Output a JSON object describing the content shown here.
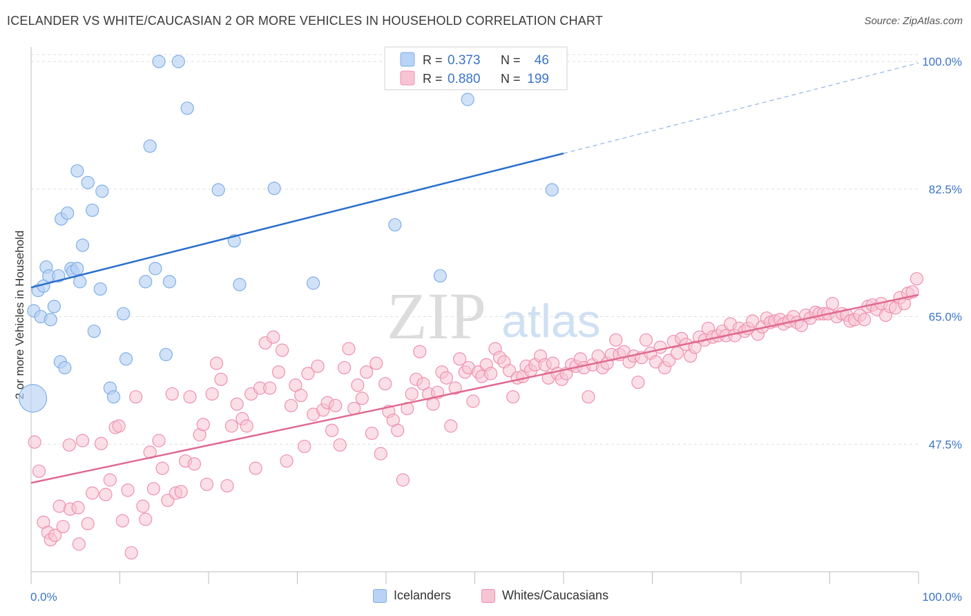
{
  "title": "ICELANDER VS WHITE/CAUCASIAN 2 OR MORE VEHICLES IN HOUSEHOLD CORRELATION CHART",
  "source": "Source: ZipAtlas.com",
  "watermark": {
    "zip": "ZIP",
    "atlas": "atlas"
  },
  "colors": {
    "blue_fill": "#b8d3f5",
    "blue_stroke": "#7faee6",
    "blue_line": "#2a6fcc",
    "pink_fill": "#f7c4d4",
    "pink_stroke": "#ee8fb0",
    "pink_line": "#e0698f",
    "tick_label": "#3b74c9"
  },
  "legend_box": {
    "rows": [
      {
        "r_label": "R =",
        "r_value": "0.373",
        "n_label": "N =",
        "n_value": "46"
      },
      {
        "r_label": "R =",
        "r_value": "0.880",
        "n_label": "N =",
        "n_value": "199"
      }
    ]
  },
  "legend_bottom": [
    {
      "label": "Icelanders"
    },
    {
      "label": "Whites/Caucasians"
    }
  ],
  "chart_data": {
    "type": "scatter",
    "title": "ICELANDER VS WHITE/CAUCASIAN 2 OR MORE VEHICLES IN HOUSEHOLD CORRELATION CHART",
    "xlabel": "",
    "ylabel": "2 or more Vehicles in Household",
    "xlim": [
      0,
      100
    ],
    "ylim": [
      30,
      102
    ],
    "x_tick_labels": [
      "0.0%",
      "100.0%"
    ],
    "y_ticks": [
      47.5,
      65.0,
      82.5,
      100.0
    ],
    "y_tick_labels": [
      "47.5%",
      "65.0%",
      "82.5%",
      "100.0%"
    ],
    "grid": true,
    "legend_position": "top-center",
    "series": [
      {
        "name": "Icelanders",
        "R": 0.373,
        "N": 46,
        "trend": {
          "x0": 0,
          "y0": 69.0,
          "x1": 60,
          "y1": 87.4,
          "dashed_to_x": 100,
          "dashed_to_y": 99.8
        },
        "points": [
          [
            0.2,
            53.8
          ],
          [
            0.3,
            65.8
          ],
          [
            0.8,
            68.6
          ],
          [
            1.1,
            65.0
          ],
          [
            1.4,
            69.2
          ],
          [
            1.7,
            71.8
          ],
          [
            2.0,
            70.6
          ],
          [
            2.2,
            64.6
          ],
          [
            2.6,
            66.4
          ],
          [
            3.1,
            70.6
          ],
          [
            3.3,
            58.8
          ],
          [
            3.4,
            78.4
          ],
          [
            3.8,
            58.0
          ],
          [
            4.1,
            79.2
          ],
          [
            4.5,
            71.6
          ],
          [
            4.7,
            71.2
          ],
          [
            5.2,
            71.6
          ],
          [
            5.2,
            85.0
          ],
          [
            5.5,
            69.8
          ],
          [
            5.8,
            74.8
          ],
          [
            6.4,
            83.4
          ],
          [
            6.9,
            79.6
          ],
          [
            7.1,
            63.0
          ],
          [
            7.8,
            68.8
          ],
          [
            8.0,
            82.2
          ],
          [
            8.9,
            55.2
          ],
          [
            9.3,
            54.0
          ],
          [
            10.4,
            65.4
          ],
          [
            10.7,
            59.2
          ],
          [
            12.9,
            69.8
          ],
          [
            13.4,
            88.4
          ],
          [
            14.0,
            71.6
          ],
          [
            14.4,
            100.0
          ],
          [
            15.2,
            59.8
          ],
          [
            15.6,
            69.8
          ],
          [
            16.6,
            100.0
          ],
          [
            17.6,
            93.6
          ],
          [
            21.1,
            82.4
          ],
          [
            22.9,
            75.4
          ],
          [
            23.5,
            69.4
          ],
          [
            27.4,
            82.6
          ],
          [
            31.8,
            69.6
          ],
          [
            41.0,
            77.6
          ],
          [
            46.1,
            70.6
          ],
          [
            49.2,
            94.8
          ],
          [
            58.7,
            82.4
          ]
        ]
      },
      {
        "name": "Whites/Caucasians",
        "R": 0.88,
        "N": 199,
        "trend": {
          "x0": 0,
          "y0": 42.2,
          "x1": 100,
          "y1": 68.0
        },
        "points": [
          [
            0.4,
            47.8
          ],
          [
            0.9,
            43.8
          ],
          [
            1.4,
            36.8
          ],
          [
            1.9,
            35.4
          ],
          [
            2.2,
            34.4
          ],
          [
            2.7,
            35.0
          ],
          [
            3.2,
            39.0
          ],
          [
            3.6,
            36.2
          ],
          [
            4.3,
            47.4
          ],
          [
            4.4,
            38.6
          ],
          [
            5.3,
            38.8
          ],
          [
            5.4,
            33.8
          ],
          [
            5.8,
            48.0
          ],
          [
            6.4,
            36.6
          ],
          [
            6.9,
            40.8
          ],
          [
            7.9,
            47.6
          ],
          [
            8.4,
            40.6
          ],
          [
            8.9,
            42.6
          ],
          [
            9.5,
            49.8
          ],
          [
            9.9,
            50.0
          ],
          [
            10.3,
            37.0
          ],
          [
            10.9,
            41.2
          ],
          [
            11.3,
            32.6
          ],
          [
            11.8,
            54.0
          ],
          [
            12.6,
            39.0
          ],
          [
            12.9,
            37.2
          ],
          [
            13.4,
            46.4
          ],
          [
            13.8,
            41.4
          ],
          [
            14.4,
            48.0
          ],
          [
            14.8,
            44.2
          ],
          [
            15.4,
            39.8
          ],
          [
            15.9,
            54.4
          ],
          [
            16.3,
            40.8
          ],
          [
            16.9,
            41.0
          ],
          [
            17.4,
            45.2
          ],
          [
            17.9,
            54.0
          ],
          [
            18.4,
            44.8
          ],
          [
            19.0,
            48.8
          ],
          [
            19.4,
            50.2
          ],
          [
            19.8,
            42.0
          ],
          [
            20.4,
            54.4
          ],
          [
            20.9,
            58.6
          ],
          [
            21.4,
            56.4
          ],
          [
            22.1,
            41.8
          ],
          [
            22.6,
            50.0
          ],
          [
            23.2,
            53.0
          ],
          [
            23.8,
            51.0
          ],
          [
            24.3,
            50.0
          ],
          [
            24.8,
            54.4
          ],
          [
            25.3,
            44.2
          ],
          [
            25.8,
            55.2
          ],
          [
            26.4,
            61.4
          ],
          [
            26.9,
            55.2
          ],
          [
            27.3,
            62.2
          ],
          [
            27.9,
            57.4
          ],
          [
            28.3,
            60.4
          ],
          [
            28.8,
            45.2
          ],
          [
            29.3,
            52.8
          ],
          [
            29.8,
            55.6
          ],
          [
            30.4,
            54.2
          ],
          [
            30.8,
            47.2
          ],
          [
            31.2,
            57.2
          ],
          [
            31.8,
            51.6
          ],
          [
            32.3,
            58.2
          ],
          [
            32.9,
            52.2
          ],
          [
            33.4,
            53.2
          ],
          [
            33.9,
            49.4
          ],
          [
            34.3,
            52.8
          ],
          [
            34.8,
            47.4
          ],
          [
            35.3,
            58.0
          ],
          [
            35.8,
            60.6
          ],
          [
            36.4,
            52.4
          ],
          [
            36.8,
            55.6
          ],
          [
            37.3,
            53.8
          ],
          [
            37.8,
            57.4
          ],
          [
            38.4,
            49.0
          ],
          [
            38.9,
            58.6
          ],
          [
            39.4,
            46.2
          ],
          [
            39.9,
            55.8
          ],
          [
            40.3,
            52.0
          ],
          [
            40.8,
            50.8
          ],
          [
            41.3,
            49.4
          ],
          [
            41.9,
            42.6
          ],
          [
            42.4,
            52.4
          ],
          [
            42.9,
            54.4
          ],
          [
            43.4,
            56.4
          ],
          [
            43.8,
            60.2
          ],
          [
            44.2,
            55.8
          ],
          [
            44.8,
            54.4
          ],
          [
            45.3,
            53.0
          ],
          [
            45.8,
            54.6
          ],
          [
            46.3,
            57.4
          ],
          [
            46.8,
            56.6
          ],
          [
            47.3,
            50.0
          ],
          [
            47.8,
            55.2
          ],
          [
            48.3,
            59.2
          ],
          [
            48.9,
            57.4
          ],
          [
            49.3,
            58.0
          ],
          [
            49.8,
            53.4
          ],
          [
            50.4,
            57.4
          ],
          [
            50.8,
            56.8
          ],
          [
            51.3,
            58.4
          ],
          [
            51.8,
            57.2
          ],
          [
            52.3,
            60.6
          ],
          [
            52.8,
            59.4
          ],
          [
            53.3,
            58.8
          ],
          [
            53.9,
            57.6
          ],
          [
            54.3,
            54.0
          ],
          [
            54.8,
            56.6
          ],
          [
            55.4,
            56.8
          ],
          [
            55.8,
            58.2
          ],
          [
            56.3,
            57.6
          ],
          [
            56.8,
            58.4
          ],
          [
            57.4,
            59.6
          ],
          [
            57.9,
            58.4
          ],
          [
            58.3,
            56.6
          ],
          [
            58.8,
            58.6
          ],
          [
            59.3,
            57.2
          ],
          [
            59.8,
            56.4
          ],
          [
            60.3,
            57.2
          ],
          [
            60.9,
            58.4
          ],
          [
            61.4,
            58.2
          ],
          [
            61.9,
            59.2
          ],
          [
            62.3,
            58.0
          ],
          [
            62.8,
            54.0
          ],
          [
            63.3,
            58.4
          ],
          [
            63.9,
            59.6
          ],
          [
            64.4,
            58.0
          ],
          [
            64.9,
            58.6
          ],
          [
            65.4,
            59.8
          ],
          [
            65.9,
            61.8
          ],
          [
            66.3,
            59.8
          ],
          [
            66.8,
            60.2
          ],
          [
            67.4,
            58.8
          ],
          [
            67.9,
            59.6
          ],
          [
            68.4,
            56.0
          ],
          [
            68.8,
            59.4
          ],
          [
            69.3,
            61.8
          ],
          [
            69.8,
            60.0
          ],
          [
            70.4,
            58.8
          ],
          [
            70.9,
            60.8
          ],
          [
            71.4,
            58.0
          ],
          [
            71.9,
            59.0
          ],
          [
            72.4,
            61.6
          ],
          [
            72.8,
            60.0
          ],
          [
            73.3,
            62.0
          ],
          [
            73.8,
            61.2
          ],
          [
            74.3,
            59.6
          ],
          [
            74.8,
            60.8
          ],
          [
            75.3,
            62.2
          ],
          [
            75.9,
            61.8
          ],
          [
            76.3,
            63.4
          ],
          [
            76.8,
            62.2
          ],
          [
            77.4,
            62.4
          ],
          [
            77.9,
            63.0
          ],
          [
            78.3,
            62.4
          ],
          [
            78.8,
            64.0
          ],
          [
            79.3,
            62.4
          ],
          [
            79.8,
            63.4
          ],
          [
            80.4,
            63.0
          ],
          [
            80.8,
            63.4
          ],
          [
            81.3,
            64.4
          ],
          [
            81.9,
            62.6
          ],
          [
            82.4,
            63.6
          ],
          [
            82.9,
            64.8
          ],
          [
            83.3,
            64.2
          ],
          [
            83.8,
            64.4
          ],
          [
            84.4,
            64.6
          ],
          [
            84.8,
            64.0
          ],
          [
            85.4,
            64.4
          ],
          [
            85.9,
            65.0
          ],
          [
            86.3,
            64.2
          ],
          [
            86.8,
            63.8
          ],
          [
            87.3,
            65.2
          ],
          [
            87.8,
            64.8
          ],
          [
            88.4,
            65.6
          ],
          [
            88.8,
            65.4
          ],
          [
            89.3,
            65.4
          ],
          [
            89.8,
            65.4
          ],
          [
            90.3,
            66.8
          ],
          [
            90.8,
            65.0
          ],
          [
            91.4,
            65.4
          ],
          [
            91.9,
            65.2
          ],
          [
            92.3,
            64.4
          ],
          [
            92.8,
            64.6
          ],
          [
            93.4,
            65.2
          ],
          [
            93.9,
            64.6
          ],
          [
            94.3,
            66.4
          ],
          [
            94.8,
            66.6
          ],
          [
            95.3,
            66.0
          ],
          [
            95.8,
            66.8
          ],
          [
            96.3,
            65.2
          ],
          [
            96.8,
            66.4
          ],
          [
            97.4,
            66.2
          ],
          [
            97.9,
            67.6
          ],
          [
            98.4,
            66.8
          ],
          [
            98.8,
            68.2
          ],
          [
            99.3,
            68.4
          ],
          [
            99.8,
            70.2
          ]
        ]
      }
    ]
  }
}
